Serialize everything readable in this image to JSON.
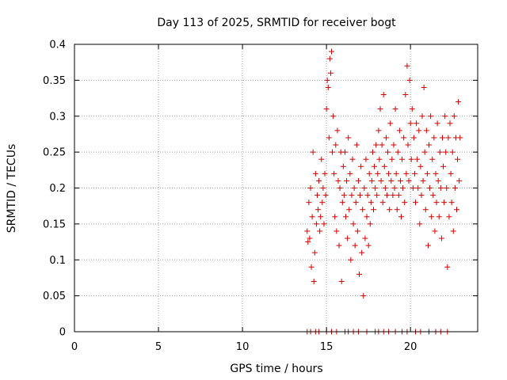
{
  "chart_data": {
    "type": "scatter",
    "title": "Day 113 of 2025, SRMTID for receiver bogt",
    "xlabel": "GPS time / hours",
    "ylabel": "SRMTID / TECUs",
    "xlim": [
      0,
      24
    ],
    "ylim": [
      0,
      0.4
    ],
    "x_ticks": [
      0,
      5,
      10,
      15,
      20
    ],
    "x_tick_labels": [
      "0",
      "5",
      "10",
      "15",
      "20"
    ],
    "y_ticks": [
      0,
      0.05,
      0.1,
      0.15,
      0.2,
      0.25,
      0.3,
      0.35,
      0.4
    ],
    "y_tick_labels": [
      "0",
      "0.05",
      "0.1",
      "0.15",
      "0.2",
      "0.25",
      "0.3",
      "0.35",
      "0.4"
    ],
    "grid": true,
    "marker": "+",
    "color": "#d40000",
    "series": [
      {
        "name": "SRMTID",
        "points": [
          [
            13.85,
            0.14
          ],
          [
            13.9,
            0.125
          ],
          [
            13.95,
            0.18
          ],
          [
            14.0,
            0.13
          ],
          [
            14.05,
            0.2
          ],
          [
            14.1,
            0.09
          ],
          [
            14.15,
            0.16
          ],
          [
            14.2,
            0.25
          ],
          [
            14.25,
            0.07
          ],
          [
            14.3,
            0.11
          ],
          [
            14.35,
            0.22
          ],
          [
            14.4,
            0.15
          ],
          [
            14.45,
            0.19
          ],
          [
            14.5,
            0.17
          ],
          [
            14.55,
            0.21
          ],
          [
            14.6,
            0.14
          ],
          [
            14.65,
            0.16
          ],
          [
            14.7,
            0.24
          ],
          [
            14.75,
            0.18
          ],
          [
            14.8,
            0.2
          ],
          [
            14.85,
            0.15
          ],
          [
            14.9,
            0.22
          ],
          [
            14.95,
            0.19
          ],
          [
            15.0,
            0.31
          ],
          [
            15.05,
            0.35
          ],
          [
            15.1,
            0.34
          ],
          [
            15.15,
            0.27
          ],
          [
            15.2,
            0.38
          ],
          [
            15.25,
            0.36
          ],
          [
            15.3,
            0.39
          ],
          [
            15.35,
            0.25
          ],
          [
            15.4,
            0.3
          ],
          [
            15.45,
            0.22
          ],
          [
            15.5,
            0.16
          ],
          [
            15.55,
            0.26
          ],
          [
            15.6,
            0.14
          ],
          [
            15.65,
            0.28
          ],
          [
            15.7,
            0.21
          ],
          [
            15.75,
            0.12
          ],
          [
            15.8,
            0.2
          ],
          [
            15.85,
            0.25
          ],
          [
            15.9,
            0.07
          ],
          [
            15.95,
            0.18
          ],
          [
            16.0,
            0.23
          ],
          [
            16.05,
            0.19
          ],
          [
            16.1,
            0.25
          ],
          [
            16.15,
            0.16
          ],
          [
            16.2,
            0.21
          ],
          [
            16.25,
            0.13
          ],
          [
            16.3,
            0.27
          ],
          [
            16.35,
            0.17
          ],
          [
            16.4,
            0.22
          ],
          [
            16.45,
            0.1
          ],
          [
            16.5,
            0.19
          ],
          [
            16.55,
            0.24
          ],
          [
            16.6,
            0.15
          ],
          [
            16.65,
            0.2
          ],
          [
            16.7,
            0.12
          ],
          [
            16.75,
            0.18
          ],
          [
            16.8,
            0.26
          ],
          [
            16.85,
            0.14
          ],
          [
            16.9,
            0.21
          ],
          [
            16.95,
            0.08
          ],
          [
            17.0,
            0.19
          ],
          [
            17.05,
            0.23
          ],
          [
            17.1,
            0.11
          ],
          [
            17.15,
            0.17
          ],
          [
            17.2,
            0.05
          ],
          [
            17.25,
            0.2
          ],
          [
            17.3,
            0.13
          ],
          [
            17.35,
            0.24
          ],
          [
            17.4,
            0.16
          ],
          [
            17.45,
            0.19
          ],
          [
            17.5,
            0.12
          ],
          [
            17.55,
            0.22
          ],
          [
            17.6,
            0.15
          ],
          [
            17.65,
            0.18
          ],
          [
            17.7,
            0.21
          ],
          [
            17.75,
            0.25
          ],
          [
            17.8,
            0.17
          ],
          [
            17.85,
            0.23
          ],
          [
            17.9,
            0.2
          ],
          [
            17.95,
            0.26
          ],
          [
            18.0,
            0.19
          ],
          [
            18.05,
            0.22
          ],
          [
            18.1,
            0.28
          ],
          [
            18.15,
            0.24
          ],
          [
            18.2,
            0.31
          ],
          [
            18.25,
            0.21
          ],
          [
            18.3,
            0.26
          ],
          [
            18.35,
            0.18
          ],
          [
            18.4,
            0.33
          ],
          [
            18.45,
            0.23
          ],
          [
            18.5,
            0.2
          ],
          [
            18.55,
            0.27
          ],
          [
            18.6,
            0.19
          ],
          [
            18.65,
            0.25
          ],
          [
            18.7,
            0.22
          ],
          [
            18.75,
            0.17
          ],
          [
            18.8,
            0.29
          ],
          [
            18.85,
            0.21
          ],
          [
            18.9,
            0.24
          ],
          [
            18.95,
            0.19
          ],
          [
            19.0,
            0.26
          ],
          [
            19.05,
            0.2
          ],
          [
            19.1,
            0.31
          ],
          [
            19.15,
            0.22
          ],
          [
            19.2,
            0.17
          ],
          [
            19.25,
            0.25
          ],
          [
            19.3,
            0.19
          ],
          [
            19.35,
            0.28
          ],
          [
            19.4,
            0.21
          ],
          [
            19.45,
            0.16
          ],
          [
            19.5,
            0.24
          ],
          [
            19.55,
            0.2
          ],
          [
            19.6,
            0.27
          ],
          [
            19.65,
            0.18
          ],
          [
            19.7,
            0.33
          ],
          [
            19.75,
            0.22
          ],
          [
            19.8,
            0.37
          ],
          [
            19.85,
            0.26
          ],
          [
            19.9,
            0.21
          ],
          [
            19.95,
            0.35
          ],
          [
            20.0,
            0.29
          ],
          [
            20.05,
            0.24
          ],
          [
            20.1,
            0.31
          ],
          [
            20.15,
            0.2
          ],
          [
            20.2,
            0.27
          ],
          [
            20.25,
            0.22
          ],
          [
            20.3,
            0.18
          ],
          [
            20.35,
            0.29
          ],
          [
            20.4,
            0.24
          ],
          [
            20.45,
            0.2
          ],
          [
            20.5,
            0.28
          ],
          [
            20.55,
            0.15
          ],
          [
            20.6,
            0.23
          ],
          [
            20.65,
            0.19
          ],
          [
            20.7,
            0.3
          ],
          [
            20.75,
            0.21
          ],
          [
            20.8,
            0.34
          ],
          [
            20.85,
            0.25
          ],
          [
            20.9,
            0.17
          ],
          [
            20.95,
            0.28
          ],
          [
            21.0,
            0.22
          ],
          [
            21.05,
            0.12
          ],
          [
            21.1,
            0.26
          ],
          [
            21.15,
            0.2
          ],
          [
            21.2,
            0.3
          ],
          [
            21.25,
            0.16
          ],
          [
            21.3,
            0.24
          ],
          [
            21.35,
            0.19
          ],
          [
            21.4,
            0.27
          ],
          [
            21.45,
            0.14
          ],
          [
            21.5,
            0.22
          ],
          [
            21.55,
            0.18
          ],
          [
            21.6,
            0.29
          ],
          [
            21.65,
            0.21
          ],
          [
            21.7,
            0.16
          ],
          [
            21.75,
            0.25
          ],
          [
            21.8,
            0.2
          ],
          [
            21.85,
            0.13
          ],
          [
            21.9,
            0.27
          ],
          [
            21.95,
            0.23
          ],
          [
            22.0,
            0.18
          ],
          [
            22.05,
            0.3
          ],
          [
            22.1,
            0.25
          ],
          [
            22.15,
            0.2
          ],
          [
            22.2,
            0.09
          ],
          [
            22.25,
            0.27
          ],
          [
            22.3,
            0.16
          ],
          [
            22.35,
            0.29
          ],
          [
            22.4,
            0.22
          ],
          [
            22.45,
            0.18
          ],
          [
            22.5,
            0.25
          ],
          [
            22.55,
            0.14
          ],
          [
            22.6,
            0.3
          ],
          [
            22.65,
            0.2
          ],
          [
            22.7,
            0.27
          ],
          [
            22.75,
            0.17
          ],
          [
            22.8,
            0.24
          ],
          [
            22.85,
            0.32
          ],
          [
            22.9,
            0.21
          ],
          [
            22.95,
            0.27
          ],
          [
            13.85,
            0.0
          ],
          [
            14.05,
            0.0
          ],
          [
            14.35,
            0.0
          ],
          [
            14.55,
            0.0
          ],
          [
            15.0,
            0.0
          ],
          [
            15.3,
            0.0
          ],
          [
            15.6,
            0.0
          ],
          [
            16.1,
            0.0
          ],
          [
            16.3,
            0.0
          ],
          [
            16.6,
            0.0
          ],
          [
            16.9,
            0.0
          ],
          [
            17.4,
            0.0
          ],
          [
            17.9,
            0.0
          ],
          [
            18.1,
            0.0
          ],
          [
            18.4,
            0.0
          ],
          [
            18.7,
            0.0
          ],
          [
            19.1,
            0.0
          ],
          [
            19.5,
            0.0
          ],
          [
            19.8,
            0.0
          ],
          [
            20.3,
            0.0
          ],
          [
            20.6,
            0.0
          ],
          [
            21.1,
            0.0
          ],
          [
            21.5,
            0.0
          ],
          [
            21.8,
            0.0
          ],
          [
            22.2,
            0.0
          ]
        ]
      }
    ]
  }
}
